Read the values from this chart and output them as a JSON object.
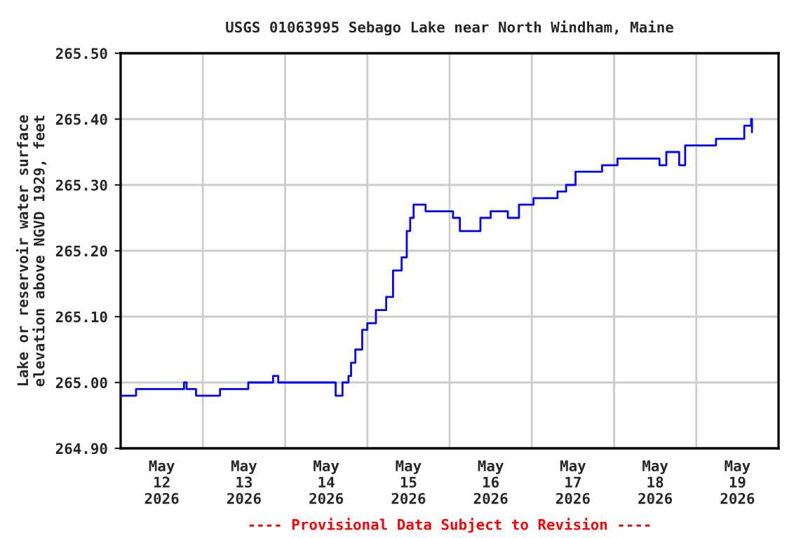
{
  "chart_data": {
    "type": "step",
    "title": "USGS 01063995 Sebago Lake near North Windham, Maine",
    "ylabel": "Lake or reservoir water surface\nelevation above NGVD 1929, feet",
    "annotations": [
      "---- Provisional Data Subject to Revision ----"
    ],
    "x": [
      "2026-05-12T00:00",
      "2026-05-12T04:30",
      "2026-05-12T12:45",
      "2026-05-12T18:30",
      "2026-05-12T19:15",
      "2026-05-12T22:00",
      "2026-05-13T05:00",
      "2026-05-13T13:15",
      "2026-05-13T20:30",
      "2026-05-13T22:00",
      "2026-05-14T02:45",
      "2026-05-14T13:45",
      "2026-05-14T14:45",
      "2026-05-14T16:45",
      "2026-05-14T18:30",
      "2026-05-14T19:15",
      "2026-05-14T20:30",
      "2026-05-14T22:30",
      "2026-05-15T00:00",
      "2026-05-15T02:30",
      "2026-05-15T05:30",
      "2026-05-15T07:30",
      "2026-05-15T09:30",
      "2026-05-15T10:00",
      "2026-05-15T11:30",
      "2026-05-15T12:30",
      "2026-05-15T13:30",
      "2026-05-15T17:00",
      "2026-05-15T23:00",
      "2026-05-16T01:00",
      "2026-05-16T03:00",
      "2026-05-16T06:30",
      "2026-05-16T09:00",
      "2026-05-16T12:00",
      "2026-05-16T17:00",
      "2026-05-16T20:15",
      "2026-05-17T00:30",
      "2026-05-17T03:45",
      "2026-05-17T07:30",
      "2026-05-17T10:00",
      "2026-05-17T12:45",
      "2026-05-17T16:45",
      "2026-05-17T20:30",
      "2026-05-18T01:00",
      "2026-05-18T10:30",
      "2026-05-18T13:15",
      "2026-05-18T15:15",
      "2026-05-18T18:15",
      "2026-05-18T19:00",
      "2026-05-18T20:45",
      "2026-05-19T00:45",
      "2026-05-19T05:45",
      "2026-05-19T11:45",
      "2026-05-19T14:00",
      "2026-05-19T16:00",
      "2026-05-19T16:15"
    ],
    "series": [
      {
        "color": "#0000ff",
        "values": [
          264.98,
          264.99,
          264.99,
          265.0,
          264.99,
          264.98,
          264.99,
          265.0,
          265.01,
          265.0,
          265.0,
          265.0,
          264.98,
          265.0,
          265.01,
          265.03,
          265.05,
          265.08,
          265.09,
          265.11,
          265.13,
          265.17,
          265.17,
          265.19,
          265.23,
          265.25,
          265.27,
          265.26,
          265.26,
          265.25,
          265.23,
          265.23,
          265.25,
          265.26,
          265.25,
          265.27,
          265.28,
          265.28,
          265.29,
          265.3,
          265.32,
          265.32,
          265.33,
          265.34,
          265.34,
          265.33,
          265.35,
          265.35,
          265.33,
          265.36,
          265.36,
          265.37,
          265.37,
          265.39,
          265.4,
          265.38
        ]
      }
    ],
    "xlim": [
      "2026-05-12T00:00",
      "2026-05-20T00:00"
    ],
    "xticks": [
      {
        "value": "2026-05-12T12:00",
        "label": "May\n12\n2026"
      },
      {
        "value": "2026-05-13T00:00",
        "label": null
      },
      {
        "value": "2026-05-13T12:00",
        "label": "May\n13\n2026"
      },
      {
        "value": "2026-05-14T00:00",
        "label": null
      },
      {
        "value": "2026-05-14T12:00",
        "label": "May\n14\n2026"
      },
      {
        "value": "2026-05-15T00:00",
        "label": null
      },
      {
        "value": "2026-05-15T12:00",
        "label": "May\n15\n2026"
      },
      {
        "value": "2026-05-16T00:00",
        "label": null
      },
      {
        "value": "2026-05-16T12:00",
        "label": "May\n16\n2026"
      },
      {
        "value": "2026-05-17T00:00",
        "label": null
      },
      {
        "value": "2026-05-17T12:00",
        "label": "May\n17\n2026"
      },
      {
        "value": "2026-05-18T00:00",
        "label": null
      },
      {
        "value": "2026-05-18T12:00",
        "label": "May\n18\n2026"
      },
      {
        "value": "2026-05-19T00:00",
        "label": null
      },
      {
        "value": "2026-05-19T12:00",
        "label": "May\n19\n2026"
      }
    ],
    "ylim": [
      264.9,
      265.5
    ],
    "yticks": [
      {
        "value": 264.9,
        "label": "264.90"
      },
      {
        "value": 265.0,
        "label": "265.00"
      },
      {
        "value": 265.1,
        "label": "265.10"
      },
      {
        "value": 265.2,
        "label": "265.20"
      },
      {
        "value": 265.3,
        "label": "265.30"
      },
      {
        "value": 265.4,
        "label": "265.40"
      },
      {
        "value": 265.5,
        "label": "265.50"
      }
    ],
    "grid": true,
    "marker": "none",
    "line_style": "solid"
  }
}
